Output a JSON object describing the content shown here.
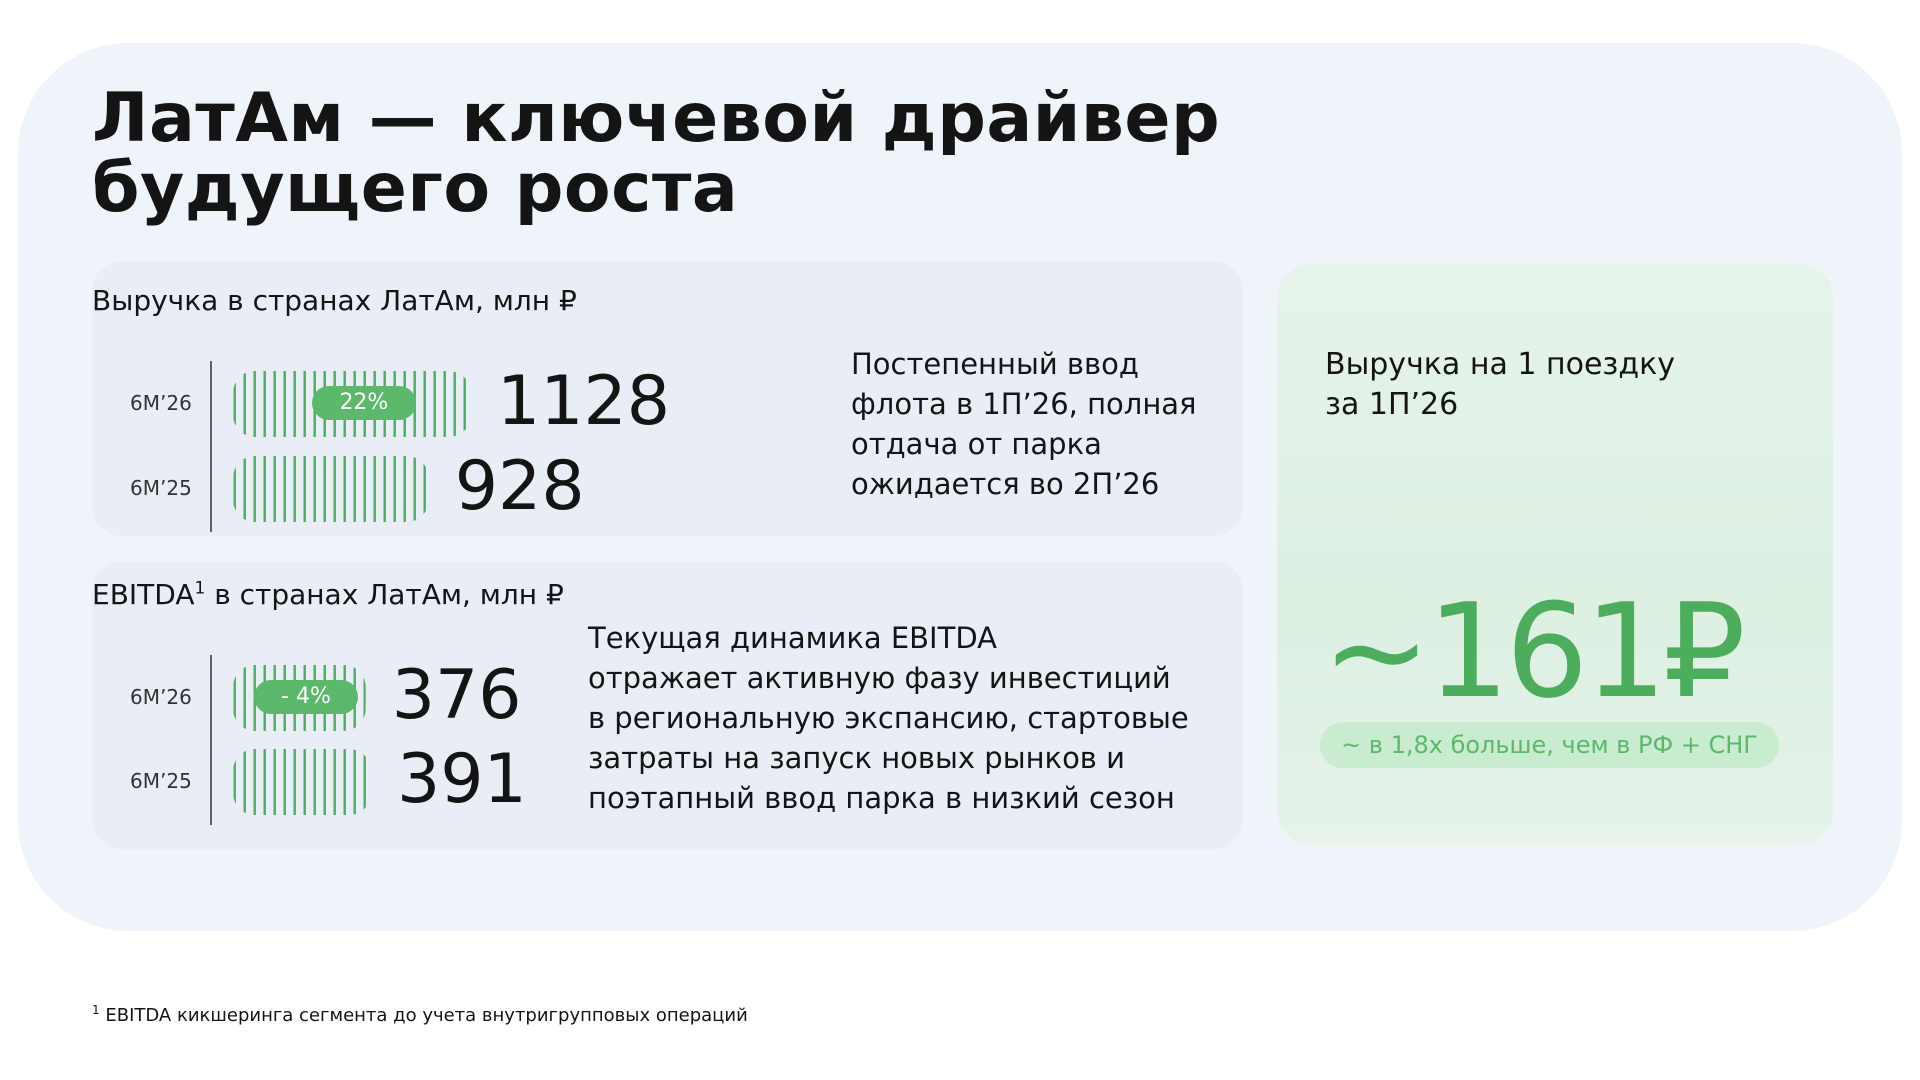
{
  "title": [
    "ЛатАм — ключевой драйвер",
    "будущего роста"
  ],
  "revenue": {
    "label": "Выручка в странах ЛатАм, млн ₽",
    "categories": [
      "6M’26",
      "6M’25"
    ],
    "values": [
      1128,
      928
    ],
    "change": "22%",
    "note": [
      "Постепенный ввод",
      "флота в 1П’26, полная",
      "отдача от парка",
      "ожидается во 2П’26"
    ]
  },
  "ebitda": {
    "label": "EBITDA",
    "label_sup": "1",
    "label_rest": " в странах ЛатАм, млн ₽",
    "categories": [
      "6M’26",
      "6M’25"
    ],
    "values": [
      376,
      391
    ],
    "change": "- 4%",
    "note": [
      "Текущая динамика EBITDA",
      "отражает активную фазу инвестиций",
      "в региональную экспансию, стартовые",
      "затраты на запуск новых рынков и",
      "поэтапный ввод парка в низкий сезон"
    ]
  },
  "per_trip": {
    "label": [
      "Выручка на 1 поездку",
      "за  1П’26"
    ],
    "value": "~161₽",
    "comparison": "~ в 1,8х больше, чем в РФ + СНГ"
  },
  "footnote": {
    "mark": "1",
    "text": " EBITDA кикшеринга сегмента до учета  внутригрупповых операций"
  }
}
